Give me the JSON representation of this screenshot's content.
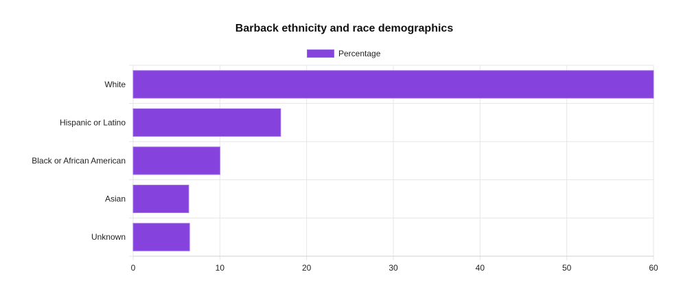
{
  "chart_data": {
    "type": "bar",
    "orientation": "horizontal",
    "title": "Barback ethnicity and race demographics",
    "categories": [
      "White",
      "Hispanic or Latino",
      "Black or African American",
      "Asian",
      "Unknown"
    ],
    "series": [
      {
        "name": "Percentage",
        "values": [
          60,
          17,
          10,
          6.4,
          6.5
        ]
      }
    ],
    "xlim": [
      0,
      60
    ],
    "xticks": [
      "0",
      "10",
      "20",
      "30",
      "40",
      "50",
      "60"
    ],
    "grid": true,
    "legend": "top-center",
    "colors": {
      "bar": "#8542dc",
      "bar_border": "#9b66e8",
      "grid": "#e6e6e6"
    }
  }
}
